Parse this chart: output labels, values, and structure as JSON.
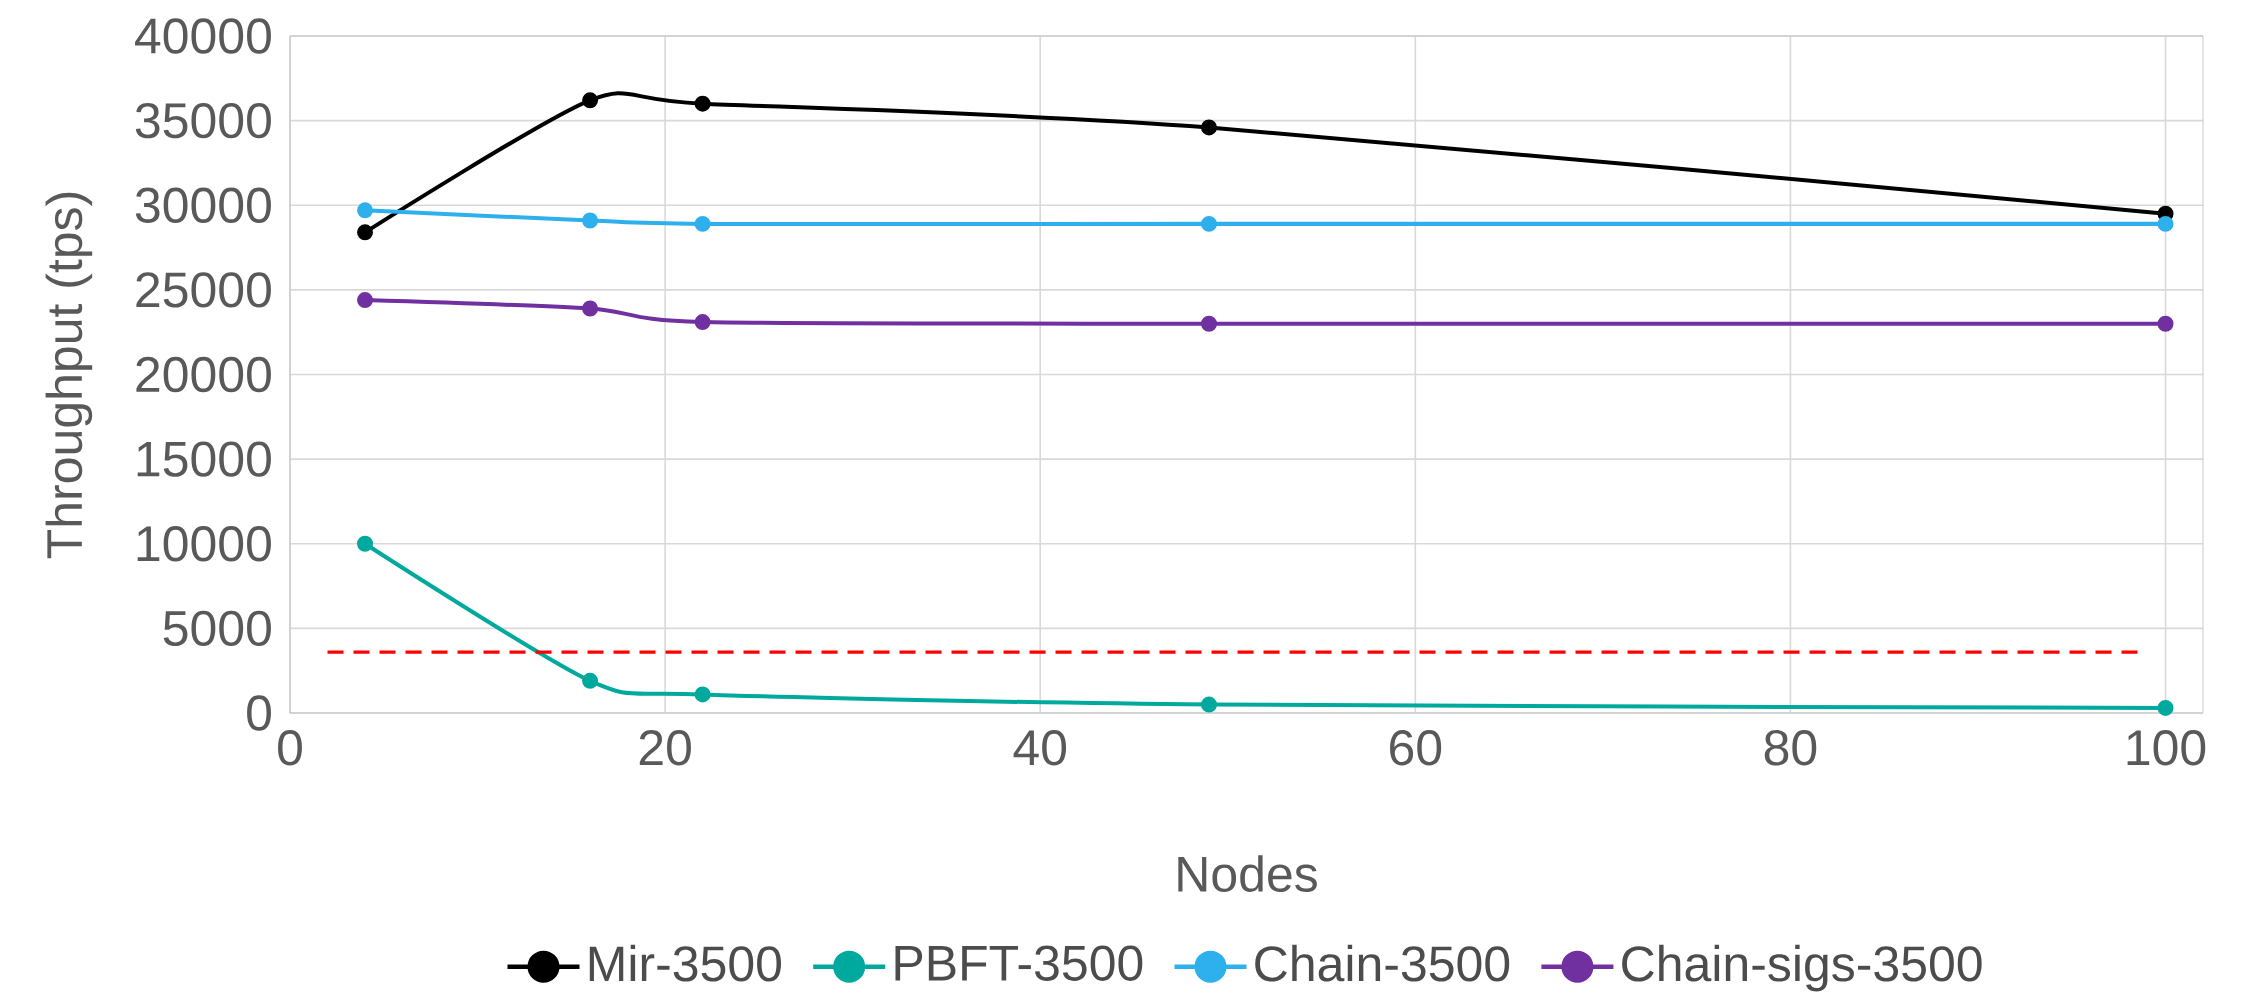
{
  "chart_data": {
    "type": "line",
    "xlabel": "Nodes",
    "ylabel": "Throughput (tps)",
    "x": [
      4,
      16,
      22,
      49,
      100
    ],
    "series": [
      {
        "name": "Mir-3500",
        "color": "#000000",
        "values": [
          28400,
          36200,
          36000,
          34600,
          29500
        ]
      },
      {
        "name": "PBFT-3500",
        "color": "#00a99d",
        "values": [
          10000,
          1900,
          1100,
          500,
          300
        ]
      },
      {
        "name": "Chain-3500",
        "color": "#2db0ec",
        "values": [
          29700,
          29100,
          28900,
          28900,
          28900
        ]
      },
      {
        "name": "Chain-sigs-3500",
        "color": "#7030a0",
        "values": [
          24400,
          23900,
          23100,
          23000,
          23000
        ]
      }
    ],
    "ref_lines": [
      {
        "axis": "y",
        "value": 3600,
        "color": "#ff0000",
        "line_style": "dashed"
      }
    ],
    "xlim": [
      0,
      102
    ],
    "xticks": [
      0,
      20,
      40,
      60,
      80,
      100
    ],
    "ylim": [
      0,
      40000
    ],
    "yticks": [
      0,
      5000,
      10000,
      15000,
      20000,
      25000,
      30000,
      35000,
      40000
    ],
    "grid": true,
    "legend": "bottom",
    "marker": "circle",
    "line_style": "solid"
  }
}
